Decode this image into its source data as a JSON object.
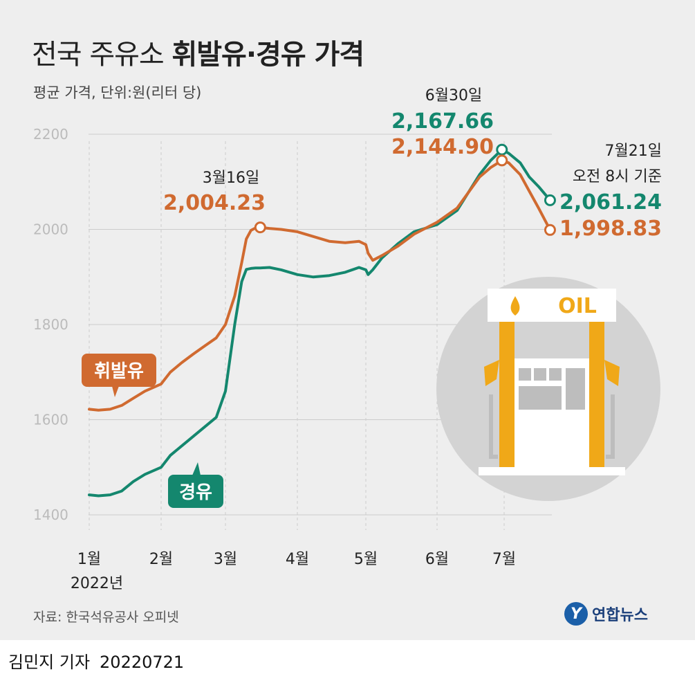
{
  "title": {
    "regular": "전국 주유소 ",
    "bold": "휘발유·경유 가격"
  },
  "subtitle": "평균 가격, 단위:원(리터 당)",
  "source": "자료: 한국석유공사 오피넷",
  "logo": {
    "mark": "Y",
    "text": "연합뉴스"
  },
  "byline": {
    "reporter": "김민지 기자",
    "date": "20220721"
  },
  "colors": {
    "gasoline": "#d06a30",
    "diesel": "#14876e",
    "grid": "#cccccc",
    "background": "#eeeeee",
    "pump_yellow": "#f0a818"
  },
  "icons": [
    "gas-pump-icon",
    "oil-drop-icon"
  ],
  "pump_sign": "OIL",
  "annotations": {
    "mar16": {
      "date": "3월16일",
      "gasoline": "2,004.23"
    },
    "jun30": {
      "date": "6월30일",
      "diesel": "2,167.66",
      "gasoline": "2,144.90"
    },
    "jul21": {
      "date": "7월21일",
      "time": "오전 8시 기준",
      "diesel": "2,061.24",
      "gasoline": "1,998.83"
    }
  },
  "chart_data": {
    "type": "line",
    "xlabel": "",
    "ylabel": "",
    "ylim": [
      1400,
      2200
    ],
    "yticks": [
      "2200",
      "2000",
      "1800",
      "1600",
      "1400"
    ],
    "xticks": [
      "1월",
      "2월",
      "3월",
      "4월",
      "5월",
      "6월",
      "7월"
    ],
    "year_label": "2022년",
    "grid": "vertical dashed at month starts",
    "x": [
      "01-01",
      "01-05",
      "01-10",
      "01-15",
      "01-20",
      "01-25",
      "02-01",
      "02-05",
      "02-10",
      "02-15",
      "02-20",
      "02-25",
      "03-01",
      "03-05",
      "03-08",
      "03-10",
      "03-12",
      "03-14",
      "03-16",
      "03-20",
      "03-25",
      "04-01",
      "04-08",
      "04-15",
      "04-22",
      "04-28",
      "05-01",
      "05-02",
      "05-04",
      "05-08",
      "05-15",
      "05-22",
      "06-01",
      "06-10",
      "06-20",
      "06-25",
      "06-30",
      "07-03",
      "07-08",
      "07-12",
      "07-16",
      "07-21"
    ],
    "series": [
      {
        "name": "휘발유",
        "values": [
          1622,
          1620,
          1622,
          1630,
          1645,
          1660,
          1675,
          1700,
          1720,
          1738,
          1755,
          1772,
          1800,
          1860,
          1930,
          1980,
          1998,
          2003,
          2004.23,
          2002,
          2000,
          1995,
          1985,
          1975,
          1972,
          1975,
          1968,
          1950,
          1935,
          1945,
          1965,
          1990,
          2015,
          2045,
          2110,
          2130,
          2144.9,
          2140,
          2115,
          2080,
          2045,
          1998.83
        ]
      },
      {
        "name": "경유",
        "values": [
          1442,
          1440,
          1442,
          1450,
          1470,
          1485,
          1500,
          1525,
          1545,
          1565,
          1585,
          1605,
          1660,
          1800,
          1890,
          1916,
          1918,
          1919,
          1919,
          1920,
          1915,
          1905,
          1900,
          1903,
          1910,
          1920,
          1915,
          1905,
          1915,
          1940,
          1970,
          1995,
          2010,
          2040,
          2115,
          2145,
          2167.66,
          2160,
          2140,
          2110,
          2090,
          2061.24
        ]
      }
    ]
  }
}
